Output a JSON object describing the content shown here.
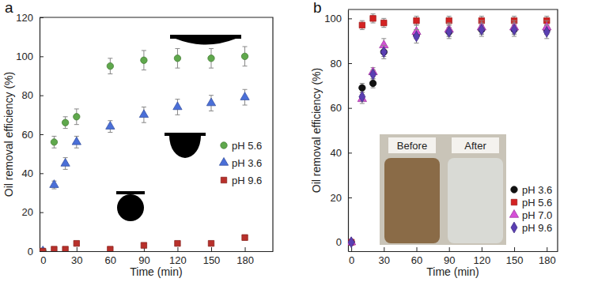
{
  "chart_data": [
    {
      "type": "scatter",
      "title": "a",
      "x_label": "Time (min)",
      "y_label": "Oil removal efficiency (%)",
      "x": [
        0,
        10,
        20,
        30,
        60,
        90,
        120,
        150,
        180
      ],
      "xlim": [
        -3,
        205
      ],
      "xticks": [
        0,
        30,
        60,
        90,
        120,
        150,
        180
      ],
      "ylim": [
        0,
        120
      ],
      "yticks": [
        0,
        20,
        40,
        60,
        80,
        100,
        120
      ],
      "legend": "right",
      "series": [
        {
          "name": "pH 5.6",
          "color": "#5fa84c",
          "marker": "circle",
          "values": [
            0,
            56,
            66,
            69,
            95,
            98,
            99,
            99,
            100
          ],
          "errors": [
            0,
            3,
            3,
            4,
            4,
            5,
            5,
            5,
            5
          ]
        },
        {
          "name": "pH 3.6",
          "color": "#4a6fd8",
          "marker": "triangle",
          "values": [
            0,
            34,
            45,
            56,
            64,
            70,
            74,
            76,
            79
          ],
          "errors": [
            0,
            2,
            3,
            3,
            3,
            4,
            4,
            4,
            4
          ]
        },
        {
          "name": "pH 9.6",
          "color": "#b8302b",
          "marker": "square",
          "values": [
            0,
            1,
            1,
            4,
            1,
            3,
            4,
            4,
            7
          ],
          "errors": [
            0,
            1,
            1,
            1,
            1,
            1,
            1,
            1,
            1
          ]
        }
      ]
    },
    {
      "type": "scatter",
      "title": "b",
      "x_label": "Time (min)",
      "y_label": "Oil removal efficiency (%)",
      "x": [
        0,
        10,
        20,
        30,
        60,
        90,
        120,
        150,
        180
      ],
      "xlim": [
        -3,
        190
      ],
      "xticks": [
        0,
        30,
        60,
        90,
        120,
        150,
        180
      ],
      "ylim": [
        -4,
        104
      ],
      "yticks": [
        0,
        20,
        40,
        60,
        80,
        100
      ],
      "legend": "bottom right",
      "annotations": [
        "Before",
        "After"
      ],
      "series": [
        {
          "name": "pH 3.6",
          "color": "#111111",
          "marker": "circle",
          "values": [
            0,
            69,
            71,
            85,
            93,
            94,
            95,
            95,
            95
          ],
          "errors": [
            0,
            2,
            2,
            2,
            2,
            2,
            2,
            2,
            2
          ]
        },
        {
          "name": "pH 5.6",
          "color": "#d42222",
          "marker": "square",
          "values": [
            0,
            97,
            100,
            98,
            99,
            99,
            99,
            99,
            99
          ],
          "errors": [
            0,
            2,
            2,
            2,
            2,
            2,
            2,
            2,
            2
          ]
        },
        {
          "name": "pH 7.0",
          "color": "#d64fd8",
          "marker": "triangle",
          "values": [
            0,
            64,
            76,
            88,
            94,
            95,
            96,
            96,
            96
          ],
          "errors": [
            0,
            2,
            2,
            3,
            3,
            3,
            3,
            3,
            3
          ]
        },
        {
          "name": "pH 9.6",
          "color": "#5a3fb2",
          "marker": "diamond",
          "values": [
            0,
            65,
            75,
            85,
            92,
            94,
            95,
            95,
            94
          ],
          "errors": [
            0,
            2,
            2,
            3,
            3,
            3,
            3,
            3,
            3
          ]
        }
      ]
    }
  ]
}
